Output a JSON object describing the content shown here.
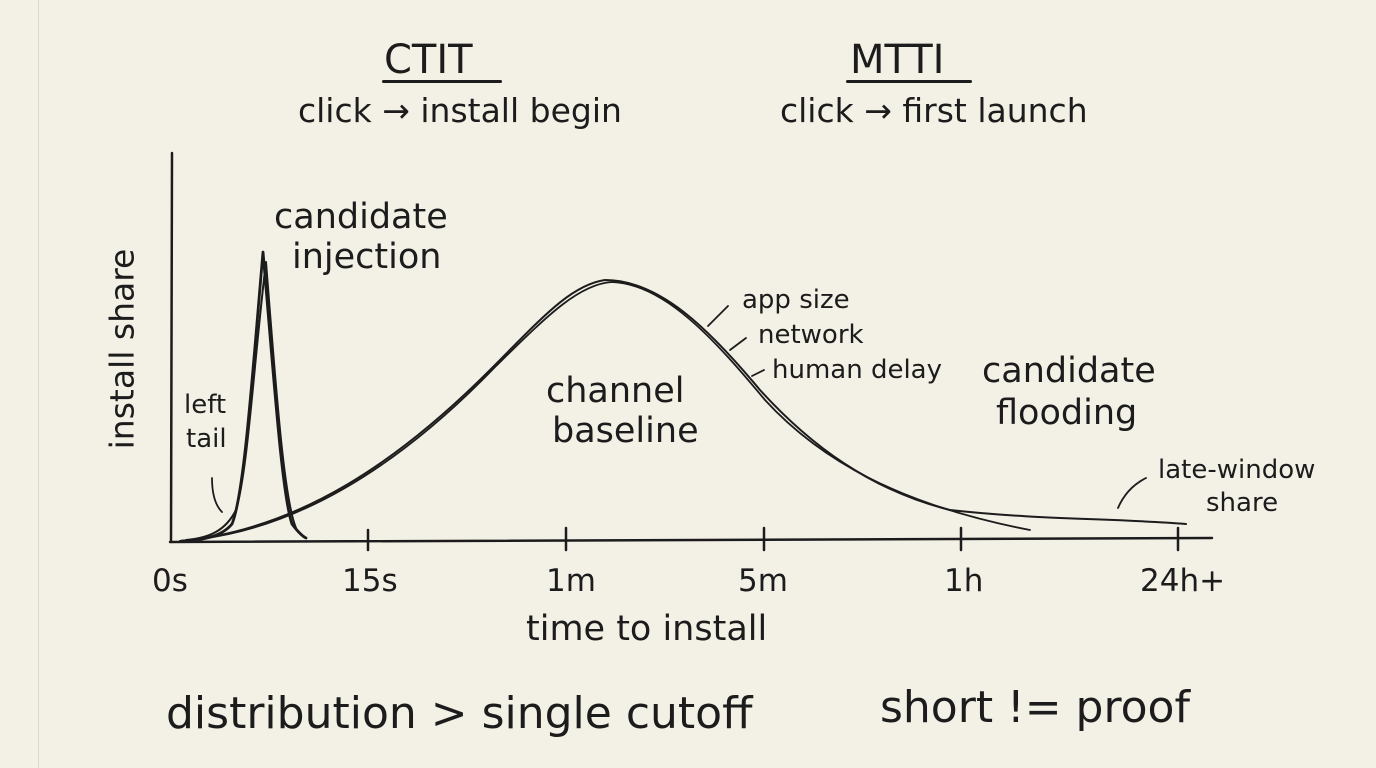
{
  "header": {
    "left": {
      "title": "CTIT",
      "subtitle": "click → install begin"
    },
    "right": {
      "title": "MTTI",
      "subtitle": "click → first launch"
    }
  },
  "chart_data": {
    "type": "line",
    "xlabel": "time to install",
    "ylabel": "install share",
    "x_ticks": [
      "0s",
      "15s",
      "1m",
      "5m",
      "1h",
      "24h+"
    ],
    "x_scale": "log-like categorical",
    "series": [
      {
        "shape": "sharp spike at a few seconds",
        "peak_x": "≈8s"
      },
      {
        "shape": "broad bell curve with long right tail",
        "peak_x": "≈2m"
      }
    ],
    "annotations": {
      "spike": "candidate injection",
      "left_tail": "left tail",
      "bell": "channel baseline",
      "slope_factors": [
        "app size",
        "network",
        "human delay"
      ],
      "right_tail": "candidate flooding",
      "late": "late-window share"
    }
  },
  "footer": {
    "left": "distribution > single cutoff",
    "right": "short != proof"
  },
  "colors": {
    "ink": "#1c1c1c",
    "paper": "#f3f0e6"
  }
}
